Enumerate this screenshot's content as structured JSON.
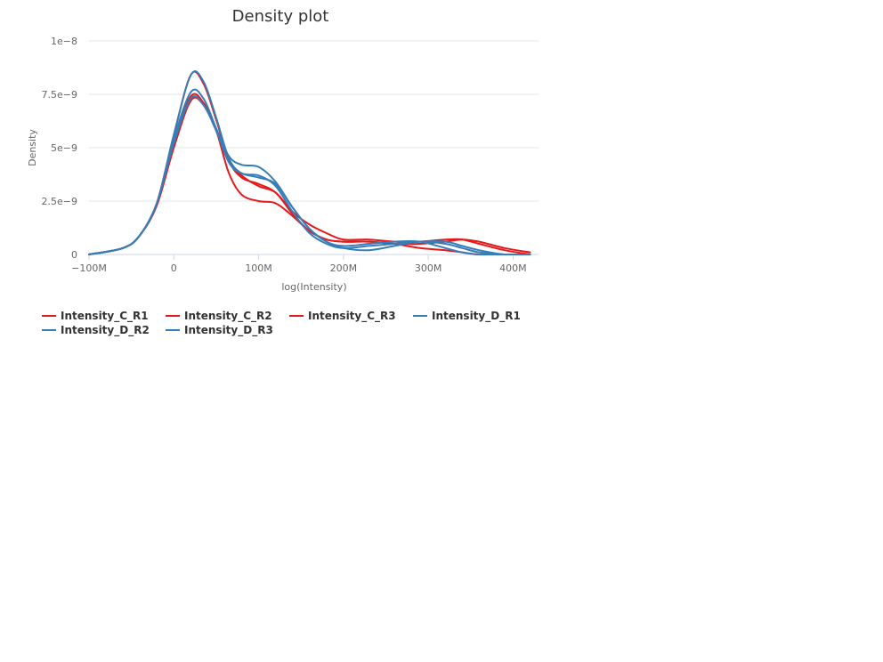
{
  "chart_data": {
    "type": "line",
    "title": "Density plot",
    "xlabel": "log(Intensity)",
    "ylabel": "Density",
    "xlim": [
      -100000000,
      430000000
    ],
    "ylim": [
      0,
      1e-08
    ],
    "x_ticks": [
      {
        "value": -100000000,
        "label": "−100M"
      },
      {
        "value": 0,
        "label": "0"
      },
      {
        "value": 100000000,
        "label": "100M"
      },
      {
        "value": 200000000,
        "label": "200M"
      },
      {
        "value": 300000000,
        "label": "300M"
      },
      {
        "value": 400000000,
        "label": "400M"
      }
    ],
    "y_ticks": [
      {
        "value": 0,
        "label": "0"
      },
      {
        "value": 2.5e-09,
        "label": "2.5e−9"
      },
      {
        "value": 5e-09,
        "label": "5e−9"
      },
      {
        "value": 7.5e-09,
        "label": "7.5e−9"
      },
      {
        "value": 1e-08,
        "label": "1e−8"
      }
    ],
    "grid": true,
    "legend_position": "bottom",
    "series": [
      {
        "name": "Intensity_C_R1",
        "color": "#e41a1c",
        "x": [
          -100000000,
          -60000000,
          -40000000,
          -20000000,
          0,
          20000000,
          35000000,
          50000000,
          65000000,
          80000000,
          100000000,
          120000000,
          140000000,
          160000000,
          180000000,
          200000000,
          230000000,
          260000000,
          290000000,
          320000000,
          340000000,
          360000000,
          390000000,
          420000000
        ],
        "values": [
          0,
          3e-10,
          9e-10,
          2.3e-09,
          5e-09,
          7.2e-09,
          7e-09,
          5.8e-09,
          4.4e-09,
          3.7e-09,
          3.2e-09,
          2.9e-09,
          2e-09,
          1.4e-09,
          1e-09,
          7e-10,
          7e-10,
          6e-10,
          6e-10,
          7e-10,
          7e-10,
          5e-10,
          2e-10,
          0
        ]
      },
      {
        "name": "Intensity_C_R2",
        "color": "#e41a1c",
        "x": [
          -100000000,
          -60000000,
          -40000000,
          -20000000,
          0,
          20000000,
          35000000,
          50000000,
          65000000,
          80000000,
          100000000,
          120000000,
          140000000,
          160000000,
          180000000,
          200000000,
          230000000,
          260000000,
          290000000,
          320000000,
          340000000,
          360000000,
          390000000,
          420000000
        ],
        "values": [
          0,
          3e-10,
          9e-10,
          2.4e-09,
          5.3e-09,
          7.4e-09,
          7.1e-09,
          5.8e-09,
          3.8e-09,
          2.8e-09,
          2.5e-09,
          2.4e-09,
          1.8e-09,
          1.1e-09,
          7e-10,
          6e-10,
          6e-10,
          5e-10,
          5e-10,
          6e-10,
          7e-10,
          6e-10,
          3e-10,
          1e-10
        ]
      },
      {
        "name": "Intensity_C_R3",
        "color": "#e41a1c",
        "x": [
          -100000000,
          -60000000,
          -40000000,
          -20000000,
          0,
          20000000,
          35000000,
          50000000,
          65000000,
          80000000,
          100000000,
          120000000,
          140000000,
          160000000,
          180000000,
          200000000,
          230000000,
          260000000,
          290000000,
          320000000,
          340000000,
          360000000,
          390000000,
          420000000
        ],
        "values": [
          0,
          3e-10,
          9e-10,
          2.4e-09,
          5.6e-09,
          8.4e-09,
          8e-09,
          6.3e-09,
          4.4e-09,
          3.6e-09,
          3.3e-09,
          2.9e-09,
          1.9e-09,
          1.1e-09,
          7e-10,
          6e-10,
          6e-10,
          5e-10,
          3e-10,
          2e-10,
          1e-10,
          0,
          0,
          0
        ]
      },
      {
        "name": "Intensity_D_R1",
        "color": "#377eb8",
        "x": [
          -100000000,
          -60000000,
          -40000000,
          -20000000,
          0,
          20000000,
          35000000,
          50000000,
          65000000,
          80000000,
          100000000,
          120000000,
          140000000,
          160000000,
          180000000,
          200000000,
          230000000,
          260000000,
          290000000,
          320000000,
          340000000,
          360000000,
          390000000,
          420000000
        ],
        "values": [
          0,
          3e-10,
          9e-10,
          2.4e-09,
          5.4e-09,
          7.6e-09,
          7.3e-09,
          5.9e-09,
          4.6e-09,
          4.2e-09,
          4.1e-09,
          3.4e-09,
          2.2e-09,
          1.2e-09,
          6e-10,
          3e-10,
          2e-10,
          4e-10,
          6e-10,
          5e-10,
          3e-10,
          1e-10,
          0,
          0
        ]
      },
      {
        "name": "Intensity_D_R2",
        "color": "#377eb8",
        "x": [
          -100000000,
          -60000000,
          -40000000,
          -20000000,
          0,
          20000000,
          35000000,
          50000000,
          65000000,
          80000000,
          100000000,
          120000000,
          140000000,
          160000000,
          180000000,
          200000000,
          230000000,
          260000000,
          290000000,
          320000000,
          340000000,
          360000000,
          390000000,
          420000000
        ],
        "values": [
          0,
          3e-10,
          9e-10,
          2.4e-09,
          5.6e-09,
          8.4e-09,
          8.1e-09,
          6.4e-09,
          4.5e-09,
          3.8e-09,
          3.7e-09,
          3.2e-09,
          2e-09,
          1e-09,
          5e-10,
          3e-10,
          4e-10,
          5e-10,
          6e-10,
          6e-10,
          4e-10,
          2e-10,
          0,
          0
        ]
      },
      {
        "name": "Intensity_D_R3",
        "color": "#377eb8",
        "x": [
          -100000000,
          -60000000,
          -40000000,
          -20000000,
          0,
          20000000,
          35000000,
          50000000,
          65000000,
          80000000,
          100000000,
          120000000,
          140000000,
          160000000,
          180000000,
          200000000,
          230000000,
          260000000,
          290000000,
          320000000,
          340000000,
          360000000,
          390000000,
          420000000
        ],
        "values": [
          0,
          3e-10,
          9e-10,
          2.4e-09,
          5.2e-09,
          7.3e-09,
          7e-09,
          5.8e-09,
          4.3e-09,
          3.8e-09,
          3.6e-09,
          3.3e-09,
          2.2e-09,
          1.2e-09,
          6e-10,
          4e-10,
          5e-10,
          6e-10,
          6e-10,
          3e-10,
          1e-10,
          0,
          0,
          0
        ]
      }
    ]
  }
}
